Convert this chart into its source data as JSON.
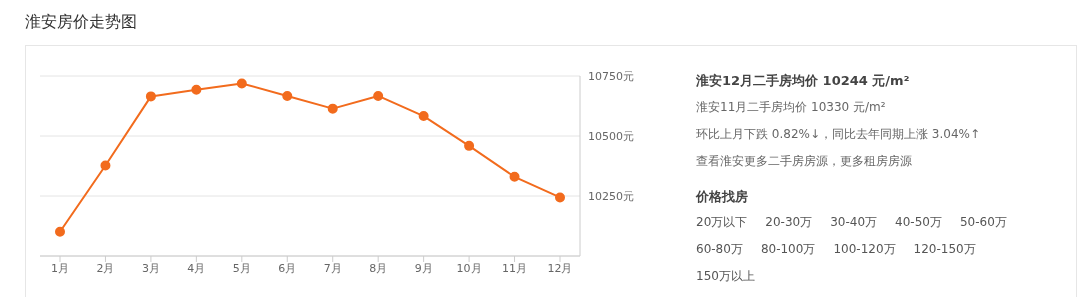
{
  "chart_data": [
    {
      "type": "line",
      "title": "淮安房价走势图",
      "categories": [
        "1月",
        "2月",
        "3月",
        "4月",
        "5月",
        "6月",
        "7月",
        "8月",
        "9月",
        "10月",
        "11月",
        "12月"
      ],
      "series": [
        {
          "color": "#f26b1d",
          "values": [
            10101,
            10377,
            10665,
            10693,
            10719,
            10667,
            10614,
            10667,
            10583,
            10459,
            10330,
            10244
          ]
        }
      ],
      "ylim": [
        10000,
        10750
      ],
      "yticks": [
        {
          "value": 10250,
          "label": "10250元"
        },
        {
          "value": 10500,
          "label": "10500元"
        },
        {
          "value": 10750,
          "label": "10750元"
        }
      ],
      "grid": "y",
      "marker": "circle",
      "line_style": "solid",
      "legend": false
    },
    {
      "type": "other",
      "annotations": [
        "淮安12月二手房均价 10244 元/m²",
        "淮安11月二手房均价 10330 元/m²",
        "环比上月下跌 0.82%↓，同比去年同期上涨 3.04%↑",
        "查看淮安更多二手房房源，更多租房房源",
        "价格找房",
        "20万以下",
        "20-30万",
        "30-40万",
        "40-50万",
        "50-60万",
        "60-80万",
        "80-100万",
        "100-120万",
        "120-150万",
        "150万以上"
      ]
    }
  ]
}
